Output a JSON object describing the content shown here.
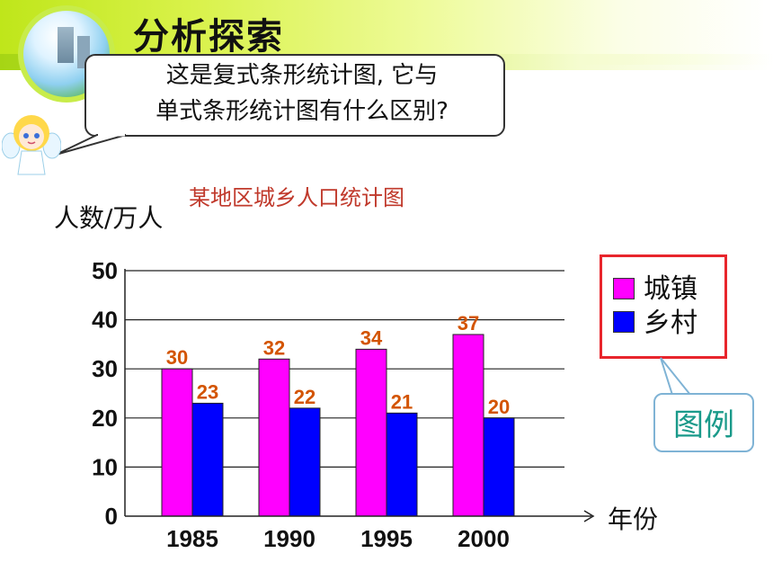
{
  "header": {
    "title": "分析探索",
    "bubble_line1": "这是复式条形统计图, 它与",
    "bubble_line2": "单式条形统计图有什么区别?"
  },
  "legend": {
    "items": [
      {
        "label": "城镇",
        "color": "#ff00ff"
      },
      {
        "label": "乡村",
        "color": "#0000ff"
      }
    ],
    "callout": "图例"
  },
  "colors": {
    "urban": "#ff00ff",
    "rural": "#0000ff",
    "data_label": "#d35400",
    "title": "#c0392b",
    "legend_border": "#e8252c"
  },
  "chart_data": {
    "type": "bar",
    "title": "某地区城乡人口统计图",
    "ylabel": "人数/万人",
    "xlabel": "年份",
    "categories": [
      "1985",
      "1990",
      "1995",
      "2000"
    ],
    "yticks": [
      "0",
      "10",
      "20",
      "30",
      "40",
      "50"
    ],
    "ylim": [
      0,
      50
    ],
    "grid": true,
    "legend_position": "right",
    "series": [
      {
        "name": "城镇",
        "values": [
          30,
          32,
          34,
          37
        ]
      },
      {
        "name": "乡村",
        "values": [
          23,
          22,
          21,
          20
        ]
      }
    ]
  }
}
